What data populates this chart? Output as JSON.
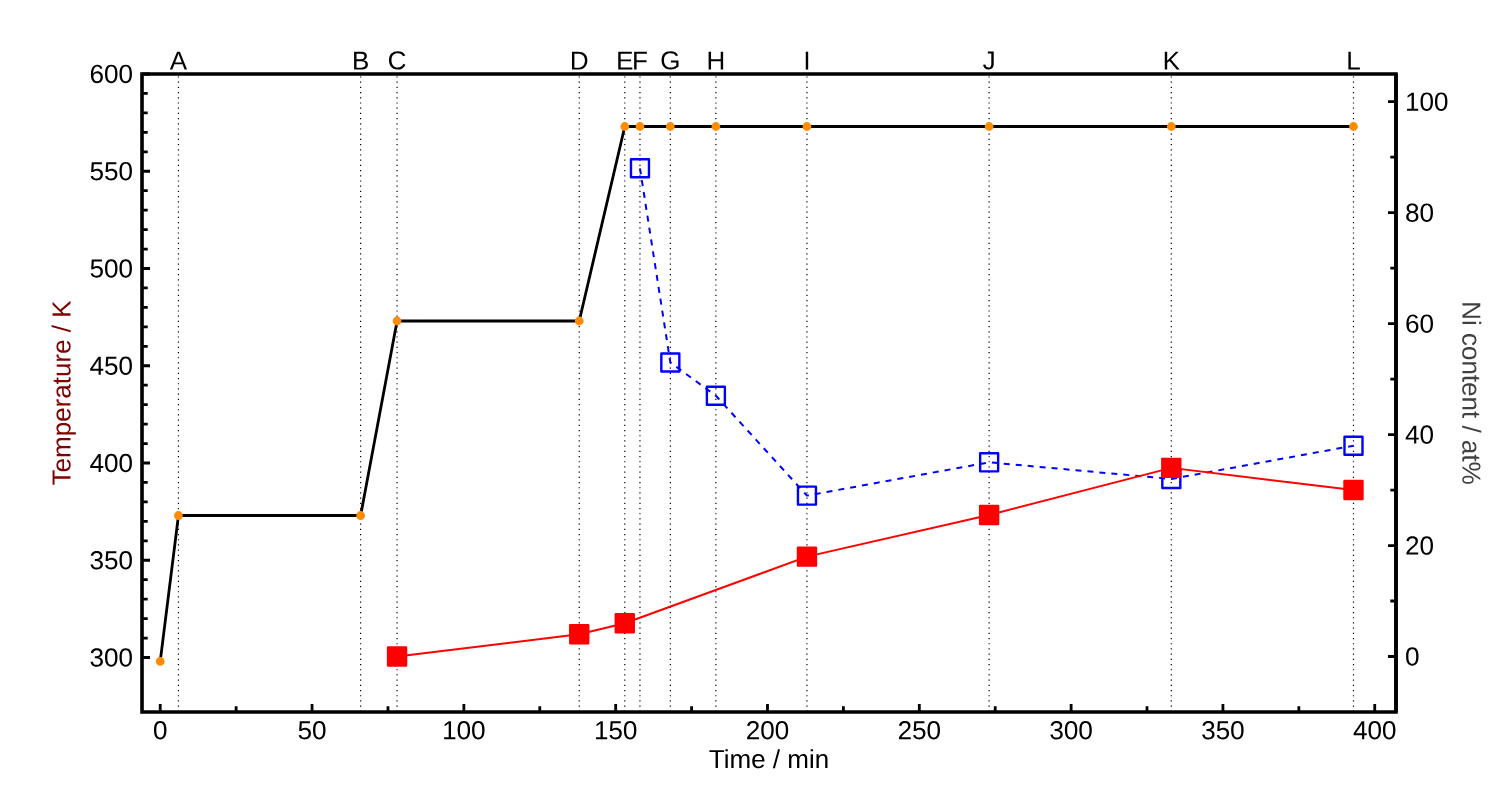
{
  "chart_data": {
    "type": "line",
    "xlabel": "Time / min",
    "ylabel": "Temperature / K",
    "y2label": "Ni content / at%",
    "xlim": [
      -6,
      407
    ],
    "xticks": [
      0,
      50,
      100,
      150,
      200,
      250,
      300,
      350,
      400
    ],
    "ylim": [
      272,
      600
    ],
    "yticks": [
      300,
      350,
      400,
      450,
      500,
      550,
      600
    ],
    "y2lim": [
      -10,
      105
    ],
    "y2ticks": [
      0,
      20,
      40,
      60,
      80,
      100
    ],
    "series": [
      {
        "color": "#000000",
        "marker": "circle",
        "colors": [
          "#ff8c00",
          "#ff8c00",
          "#ff8c00",
          "#ff8c00",
          "#ff8c00",
          "#ff8c00",
          "#ff8c00",
          "#ff8c00",
          "#ff8c00",
          "#ff8c00",
          "#ff8c00",
          "#ff8c00",
          "#ff8c00"
        ],
        "line_style": "solid",
        "x": [
          0,
          6,
          66,
          78,
          138,
          153,
          158,
          168,
          183,
          213,
          273,
          333,
          393
        ],
        "values": [
          298,
          373,
          373,
          473,
          473,
          573,
          573,
          573,
          573,
          573,
          573,
          573,
          573
        ]
      },
      {
        "color": "#0000ff",
        "marker": "square",
        "line_style": "dashed",
        "axis": "y2",
        "x": [
          158,
          168,
          183,
          213,
          273,
          333,
          393
        ],
        "values": [
          88,
          53,
          47,
          29,
          35,
          32,
          38
        ]
      },
      {
        "color": "#ff0000",
        "marker": "square",
        "line_style": "solid",
        "axis": "y2",
        "x": [
          78,
          138,
          153,
          213,
          273,
          333,
          393
        ],
        "values": [
          0,
          4,
          6,
          18,
          25.5,
          34,
          30
        ]
      }
    ],
    "ref_lines": [
      {
        "axis": "x",
        "value": 6,
        "label": "A",
        "line_style": "dotted"
      },
      {
        "axis": "x",
        "value": 66,
        "label": "B",
        "line_style": "dotted"
      },
      {
        "axis": "x",
        "value": 78,
        "label": "C",
        "line_style": "dotted"
      },
      {
        "axis": "x",
        "value": 138,
        "label": "D",
        "line_style": "dotted"
      },
      {
        "axis": "x",
        "value": 153,
        "label": "E",
        "line_style": "dotted"
      },
      {
        "axis": "x",
        "value": 158,
        "label": "F",
        "line_style": "dotted"
      },
      {
        "axis": "x",
        "value": 168,
        "label": "G",
        "line_style": "dotted"
      },
      {
        "axis": "x",
        "value": 183,
        "label": "H",
        "line_style": "dotted"
      },
      {
        "axis": "x",
        "value": 213,
        "label": "I",
        "line_style": "dotted"
      },
      {
        "axis": "x",
        "value": 273,
        "label": "J",
        "line_style": "dotted"
      },
      {
        "axis": "x",
        "value": 333,
        "label": "K",
        "line_style": "dotted"
      },
      {
        "axis": "x",
        "value": 393,
        "label": "L",
        "line_style": "dotted"
      }
    ],
    "grid": false
  }
}
